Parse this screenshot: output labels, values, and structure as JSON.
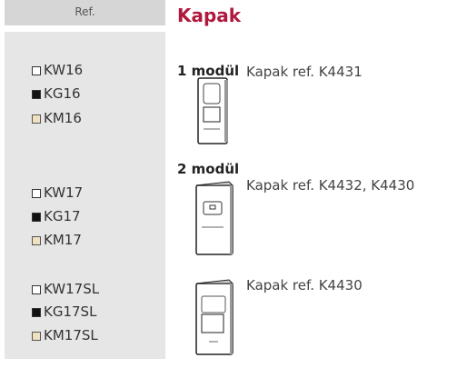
{
  "ref_header": "Ref.",
  "title": "Kapak",
  "sections": [
    {
      "heading": "1 modül",
      "items": [
        {
          "caption": "Kapak ref. K4431",
          "codes": [
            "KW16",
            "KG16",
            "KM16"
          ]
        }
      ]
    },
    {
      "heading": "2 modül",
      "items": [
        {
          "caption": "Kapak ref. K4432, K4430",
          "codes": [
            "KW17",
            "KG17",
            "KM17"
          ]
        },
        {
          "caption": "Kapak ref. K4430",
          "codes": [
            "KW17SL",
            "KG17SL",
            "KM17SL"
          ]
        }
      ]
    }
  ]
}
